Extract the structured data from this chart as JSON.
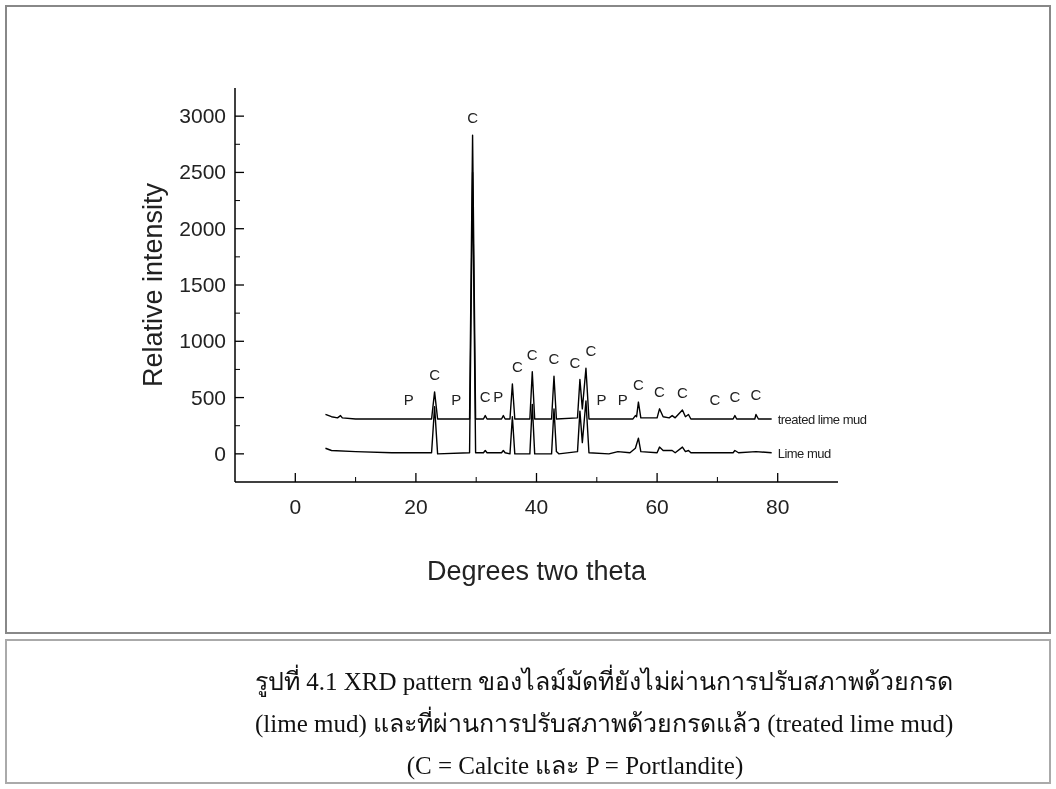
{
  "chart_data": {
    "type": "line",
    "xlabel": "Degrees two theta",
    "ylabel": "Relative intensity",
    "xlim": [
      -10,
      90
    ],
    "xticks": [
      0,
      20,
      40,
      60,
      80
    ],
    "ylim": [
      -250,
      3250
    ],
    "yticks": [
      0,
      500,
      1000,
      1500,
      2000,
      2500,
      3000
    ],
    "grid": false,
    "series": [
      {
        "name": "treated lime mud",
        "color": "#000000",
        "x": [
          5,
          6,
          7,
          7.5,
          7.8,
          10,
          18.8,
          22.6,
          23.1,
          23.6,
          26.7,
          28.9,
          29.4,
          29.9,
          31.2,
          31.5,
          31.8,
          34.2,
          34.5,
          34.8,
          35.6,
          36.0,
          36.4,
          38.9,
          39.3,
          39.7,
          42.5,
          42.9,
          43.3,
          46.8,
          47.2,
          47.6,
          48.2,
          48.7,
          50.8,
          54.3,
          56.0,
          56.4,
          56.6,
          56.9,
          57.3,
          60.0,
          60.4,
          61,
          62,
          62.5,
          63,
          64.2,
          64.7,
          65.2,
          65.6,
          69.6,
          72.6,
          72.9,
          73.2,
          76.2,
          76.4,
          76.8,
          79
        ],
        "values": [
          350,
          330,
          320,
          340,
          320,
          310,
          310,
          310,
          550,
          310,
          310,
          310,
          2830,
          310,
          310,
          340,
          310,
          310,
          340,
          310,
          310,
          620,
          310,
          310,
          730,
          310,
          310,
          690,
          310,
          320,
          660,
          400,
          760,
          310,
          310,
          310,
          310,
          340,
          330,
          460,
          320,
          320,
          400,
          330,
          320,
          340,
          320,
          390,
          330,
          350,
          310,
          310,
          310,
          340,
          310,
          310,
          350,
          310,
          310
        ]
      },
      {
        "name": "Lime mud",
        "color": "#000000",
        "x": [
          5,
          6,
          10,
          16,
          22.6,
          23.1,
          23.6,
          28.9,
          29.4,
          29.9,
          31.2,
          31.5,
          31.8,
          34.2,
          34.5,
          34.8,
          35.6,
          36.0,
          36.4,
          38.9,
          39.3,
          39.7,
          42.5,
          42.9,
          43.3,
          43.7,
          46.8,
          47.2,
          47.6,
          48.2,
          48.7,
          52,
          53.5,
          55.5,
          56.4,
          56.9,
          57.3,
          60.0,
          60.4,
          61,
          62.5,
          63,
          64.2,
          64.7,
          65.2,
          65.6,
          72.6,
          72.9,
          73.5,
          76.4,
          79
        ],
        "values": [
          50,
          30,
          20,
          10,
          10,
          420,
          0,
          10,
          2500,
          10,
          10,
          30,
          10,
          10,
          30,
          10,
          0,
          330,
          0,
          0,
          440,
          0,
          0,
          400,
          20,
          0,
          20,
          380,
          100,
          470,
          10,
          0,
          20,
          10,
          50,
          140,
          20,
          10,
          60,
          30,
          30,
          10,
          60,
          20,
          30,
          10,
          10,
          30,
          10,
          20,
          10
        ]
      }
    ],
    "annotations": [
      {
        "text": "P",
        "x": 18.8,
        "y": 310
      },
      {
        "text": "C",
        "x": 23.1,
        "y": 550
      },
      {
        "text": "P",
        "x": 26.7,
        "y": 310
      },
      {
        "text": "C",
        "x": 29.4,
        "y": 2830
      },
      {
        "text": "C",
        "x": 31.5,
        "y": 340
      },
      {
        "text": "P",
        "x": 34.5,
        "y": 340
      },
      {
        "text": "C",
        "x": 36.0,
        "y": 620
      },
      {
        "text": "C",
        "x": 39.3,
        "y": 730
      },
      {
        "text": "C",
        "x": 42.9,
        "y": 690
      },
      {
        "text": "C",
        "x": 47.2,
        "y": 660
      },
      {
        "text": "C",
        "x": 48.2,
        "y": 760
      },
      {
        "text": "P",
        "x": 50.8,
        "y": 310
      },
      {
        "text": "P",
        "x": 54.3,
        "y": 310
      },
      {
        "text": "C",
        "x": 56.9,
        "y": 460
      },
      {
        "text": "C",
        "x": 60.4,
        "y": 400
      },
      {
        "text": "C",
        "x": 64.2,
        "y": 390
      },
      {
        "text": "C",
        "x": 69.6,
        "y": 310
      },
      {
        "text": "C",
        "x": 72.9,
        "y": 340
      },
      {
        "text": "C",
        "x": 76.4,
        "y": 350
      },
      "รูปที่ 4.1 XRD pattern ของไลม์มัดที่ยังไม่ผ่านการปรับสภาพด้วยกรด",
      "(lime mud) และที่ผ่านการปรับสภาพด้วยกรดแล้ว (treated lime mud)",
      "(C = Calcite และ P = Portlandite)"
    ]
  }
}
